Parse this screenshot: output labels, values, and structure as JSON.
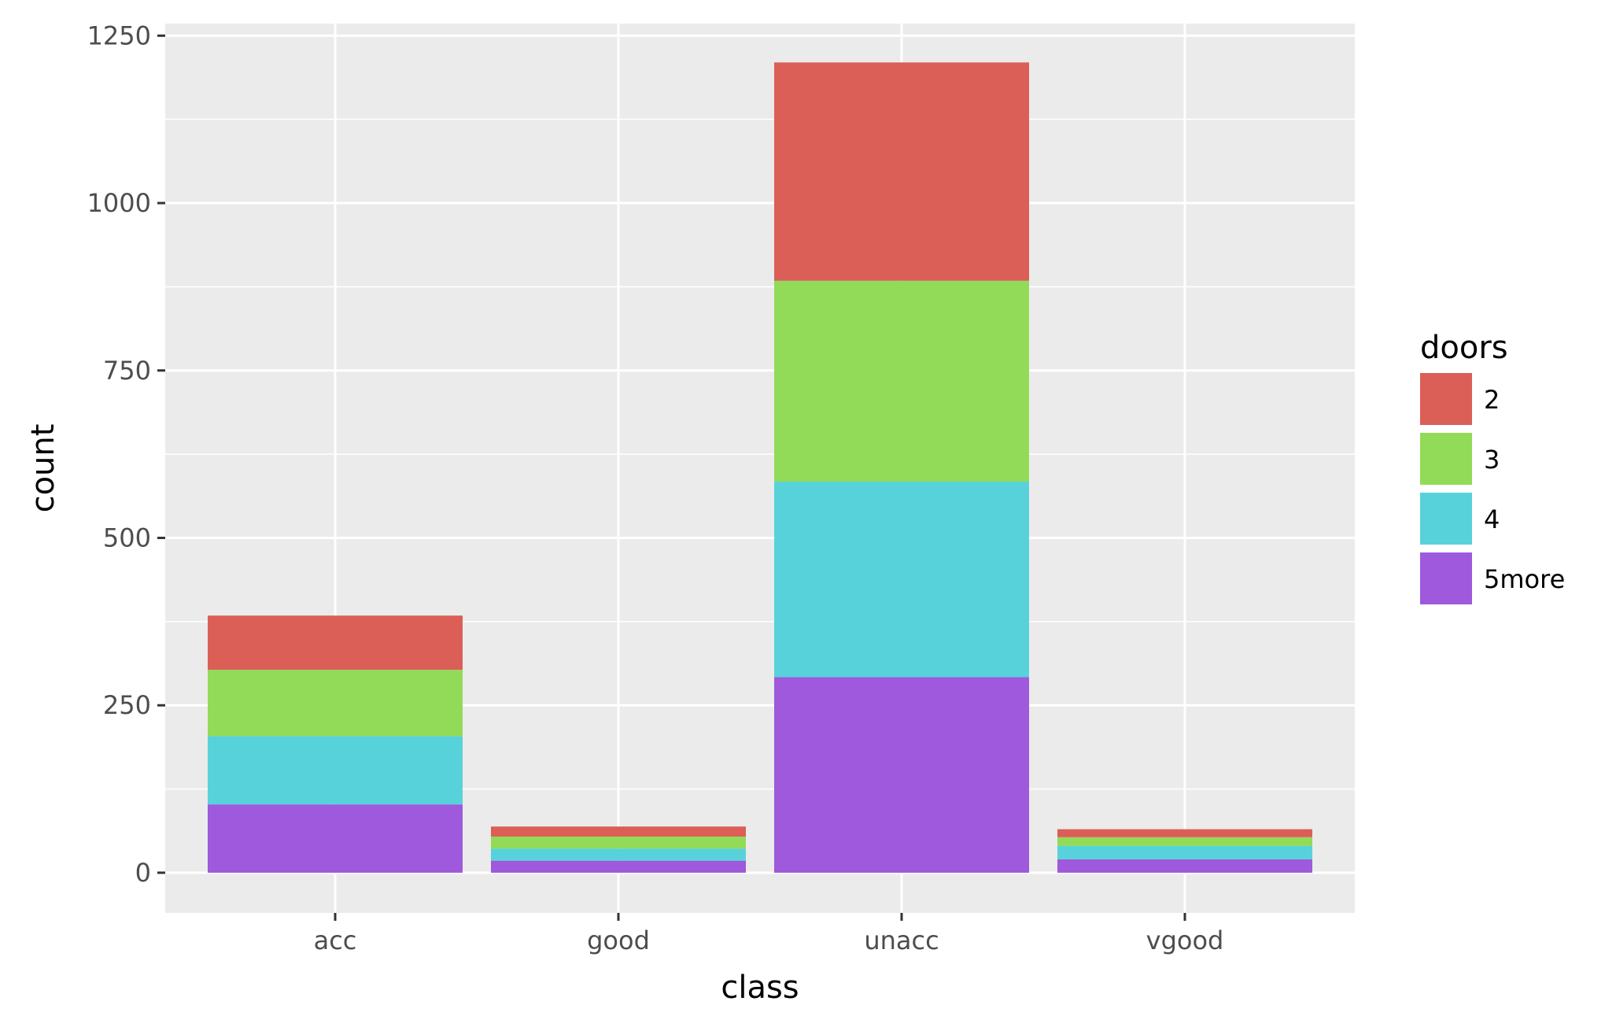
{
  "chart_data": {
    "type": "bar",
    "stacked": true,
    "categories": [
      "acc",
      "good",
      "unacc",
      "vgood"
    ],
    "series": [
      {
        "name": "5more",
        "color": "#9e59dc",
        "values": [
          102,
          18,
          292,
          20
        ]
      },
      {
        "name": "4",
        "color": "#58d2da",
        "values": [
          102,
          18,
          292,
          20
        ]
      },
      {
        "name": "3",
        "color": "#92db58",
        "values": [
          99,
          18,
          300,
          13
        ]
      },
      {
        "name": "2",
        "color": "#db5f57",
        "values": [
          81,
          15,
          326,
          12
        ]
      }
    ],
    "xlabel": "class",
    "ylabel": "count",
    "ylim": [
      -60,
      1268
    ],
    "yticks": [
      0,
      250,
      500,
      750,
      1000,
      1250
    ],
    "ytick_labels": [
      "0",
      "250",
      "500",
      "750",
      "1000",
      "1250"
    ],
    "grid": true,
    "panel_background": "#ebebeb",
    "legend": {
      "title": "doors",
      "placement": "right",
      "entries": [
        {
          "label": "2",
          "color": "#db5f57"
        },
        {
          "label": "3",
          "color": "#92db58"
        },
        {
          "label": "4",
          "color": "#58d2da"
        },
        {
          "label": "5more",
          "color": "#9e59dc"
        }
      ]
    }
  }
}
